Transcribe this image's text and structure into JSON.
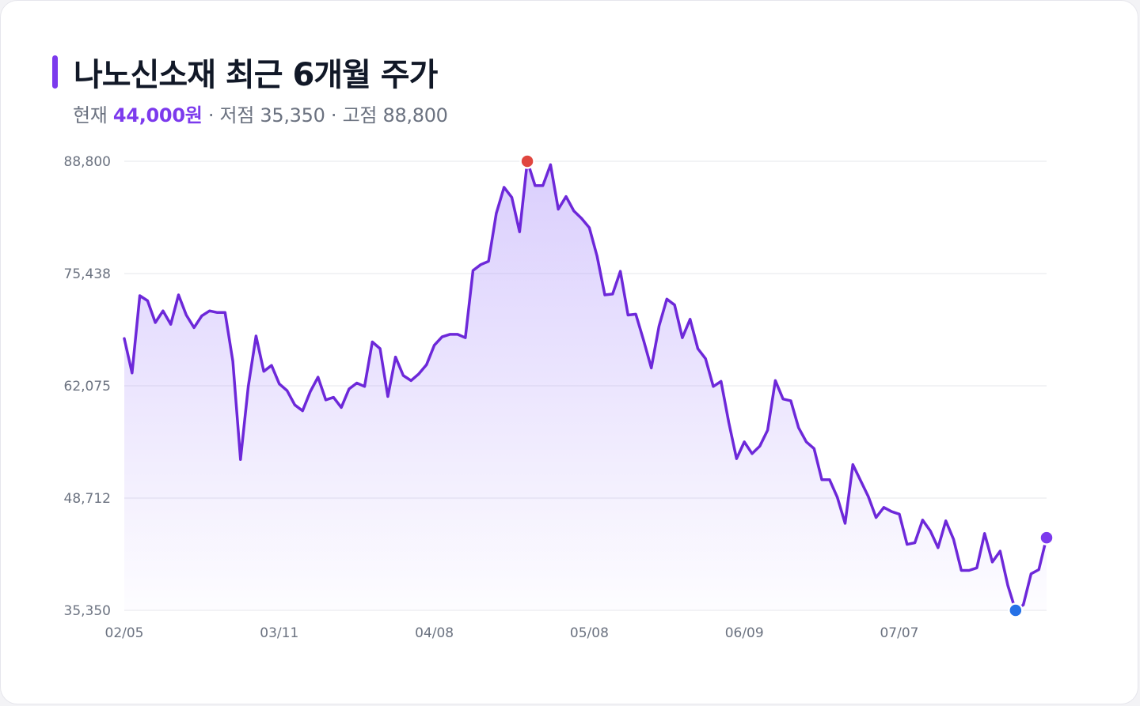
{
  "title": "나노신소재 최근 6개월 주가",
  "subtitle": {
    "current_prefix": "현재",
    "current_value": "44,000원",
    "low_label": "· 저점 35,350",
    "high_label": "· 고점 88,800"
  },
  "colors": {
    "accent": "#7c3aed",
    "line": "#6d28d9",
    "high_marker": "#e0463f",
    "low_marker": "#2671e6",
    "current_marker": "#7c3aed",
    "grid": "#e5e7eb"
  },
  "chart_data": {
    "type": "area",
    "title": "나노신소재 최근 6개월 주가",
    "ylim": [
      35350,
      88800
    ],
    "yticks": [
      "88,800",
      "75,438",
      "62,075",
      "48,712",
      "35,350"
    ],
    "ytick_values": [
      88800,
      75438,
      62075,
      48712,
      35350
    ],
    "xticks": [
      "02/05",
      "03/11",
      "04/08",
      "05/08",
      "06/09",
      "07/07"
    ],
    "xtick_index": [
      0,
      20,
      40,
      60,
      80,
      100
    ],
    "grid": true,
    "markers": {
      "high": 88800,
      "low": 35350,
      "current": 44000
    },
    "series": [
      {
        "values": [
          67700,
          63600,
          72800,
          72200,
          69600,
          71000,
          69400,
          72900,
          70500,
          69000,
          70400,
          71000,
          70800,
          70800,
          65000,
          53300,
          62000,
          68000,
          63800,
          64500,
          62300,
          61500,
          59800,
          59100,
          61400,
          63100,
          60400,
          60700,
          59500,
          61700,
          62400,
          62000,
          67300,
          66500,
          60800,
          65500,
          63300,
          62700,
          63500,
          64600,
          66900,
          67900,
          68200,
          68200,
          67800,
          75800,
          76500,
          76900,
          82600,
          85700,
          84500,
          80400,
          88800,
          85900,
          85900,
          88400,
          83100,
          84600,
          82900,
          82000,
          80900,
          77500,
          72900,
          73000,
          75700,
          70500,
          70600,
          67500,
          64200,
          69200,
          72400,
          71700,
          67800,
          70000,
          66500,
          65300,
          62000,
          62600,
          57700,
          53400,
          55400,
          54000,
          54900,
          56800,
          62700,
          60500,
          60300,
          57100,
          55400,
          54600,
          50900,
          50900,
          48800,
          45700,
          52700,
          50800,
          48900,
          46400,
          47600,
          47100,
          46800,
          43200,
          43400,
          46100,
          44800,
          42800,
          46000,
          43800,
          40100,
          40100,
          40400,
          44500,
          41100,
          42400,
          38300,
          35350,
          36000,
          39700,
          40200,
          44000
        ]
      }
    ]
  }
}
